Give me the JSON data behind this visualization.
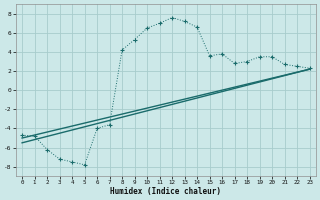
{
  "xlabel": "Humidex (Indice chaleur)",
  "bg_color": "#cce8e8",
  "grid_color": "#a8cccc",
  "line_color": "#1a6b6b",
  "xlim": [
    -0.5,
    23.5
  ],
  "ylim": [
    -9,
    9
  ],
  "xticks": [
    0,
    1,
    2,
    3,
    4,
    5,
    6,
    7,
    8,
    9,
    10,
    11,
    12,
    13,
    14,
    15,
    16,
    17,
    18,
    19,
    20,
    21,
    22,
    23
  ],
  "yticks": [
    -8,
    -6,
    -4,
    -2,
    0,
    2,
    4,
    6,
    8
  ],
  "curve1_x": [
    0,
    1,
    2,
    3,
    4,
    5,
    6,
    7,
    8,
    9,
    10,
    11,
    12,
    13,
    14,
    15,
    16,
    17,
    18,
    19,
    20,
    21,
    22,
    23
  ],
  "curve1_y": [
    -4.7,
    -4.8,
    -6.2,
    -7.2,
    -7.5,
    -7.8,
    -4.0,
    -3.6,
    4.2,
    5.3,
    6.5,
    7.0,
    7.6,
    7.2,
    6.6,
    3.6,
    3.8,
    2.8,
    3.0,
    3.5,
    3.5,
    2.7,
    2.5,
    2.3
  ],
  "line2_x": [
    0,
    23
  ],
  "line2_y": [
    -5.0,
    2.2
  ],
  "line3_x": [
    0,
    23
  ],
  "line3_y": [
    -5.5,
    2.2
  ]
}
